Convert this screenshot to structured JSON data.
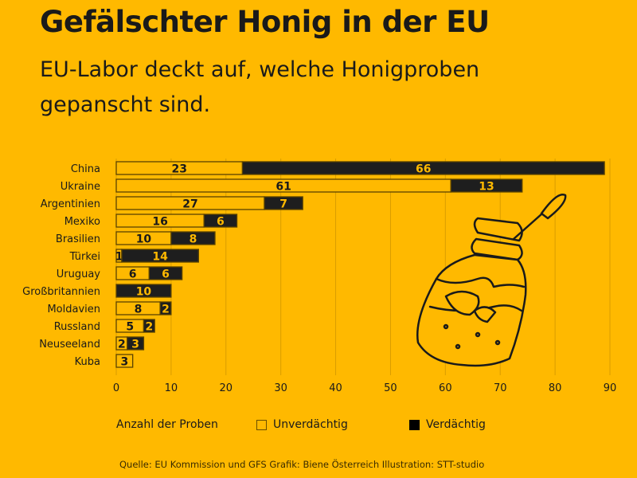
{
  "title": "Gefälschter Honig in der EU",
  "subtitle": "EU-Labor deckt auf, welche Honigproben gepanscht sind.",
  "colors": {
    "background": "#FFB900",
    "unverdaechtig": "#FFB900",
    "verdaechtig": "#1E1E1E",
    "outline": "#5a4300"
  },
  "chart_data": {
    "type": "bar",
    "orientation": "horizontal",
    "stacked": true,
    "categories": [
      "China",
      "Ukraine",
      "Argentinien",
      "Mexiko",
      "Brasilien",
      "Türkei",
      "Uruguay",
      "Großbritannien",
      "Moldavien",
      "Russland",
      "Neuseeland",
      "Kuba"
    ],
    "series": [
      {
        "name": "Unverdächtig",
        "values": [
          23,
          61,
          27,
          16,
          10,
          1,
          6,
          0,
          8,
          5,
          2,
          3
        ]
      },
      {
        "name": "Verdächtig",
        "values": [
          66,
          13,
          7,
          6,
          8,
          14,
          6,
          10,
          2,
          2,
          3,
          0
        ]
      }
    ],
    "xlim": [
      0,
      90
    ],
    "xticks": [
      0,
      10,
      20,
      30,
      40,
      50,
      60,
      70,
      80,
      90
    ],
    "grid": true,
    "legend_title": "Anzahl der Proben",
    "legend_placement": "bottom"
  },
  "source": "Quelle: EU Kommission und GFS Grafik: Biene Österreich  Illustration: STT-studio",
  "illustration": "honey-jar-with-dipper"
}
